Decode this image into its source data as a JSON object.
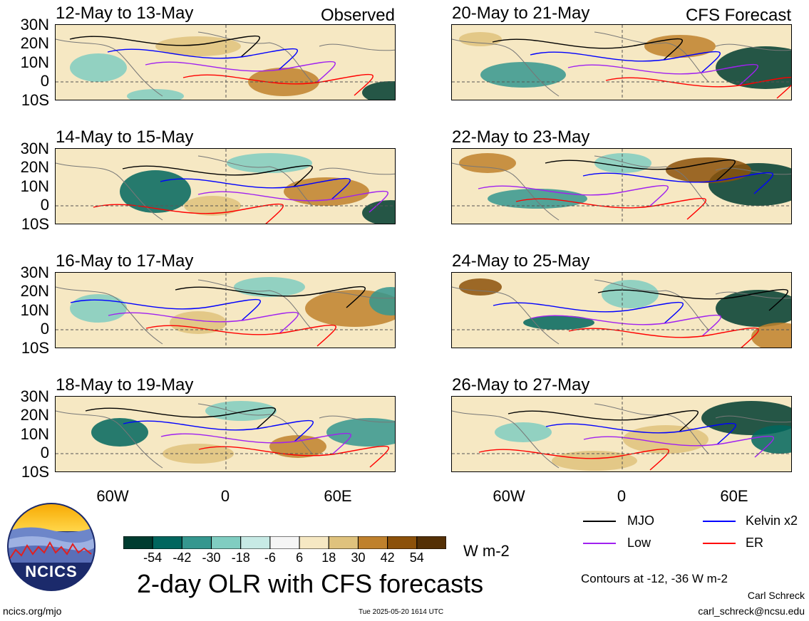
{
  "panels": [
    {
      "title": "12-May to 13-May",
      "tag": "Observed"
    },
    {
      "title": "20-May to 21-May",
      "tag": "CFS Forecast"
    },
    {
      "title": "14-May to 15-May",
      "tag": ""
    },
    {
      "title": "22-May to 23-May",
      "tag": ""
    },
    {
      "title": "16-May to 17-May",
      "tag": ""
    },
    {
      "title": "24-May to 25-May",
      "tag": ""
    },
    {
      "title": "18-May to 19-May",
      "tag": ""
    },
    {
      "title": "26-May to 27-May",
      "tag": ""
    }
  ],
  "lat_labels": [
    "30N",
    "20N",
    "10N",
    "0",
    "10S"
  ],
  "lon_labels": [
    "60W",
    "0",
    "60E"
  ],
  "colorbar": {
    "labels": [
      "-54",
      "-42",
      "-30",
      "-18",
      "-6",
      "6",
      "18",
      "30",
      "42",
      "54"
    ],
    "colors": [
      "#003c30",
      "#01665e",
      "#35978f",
      "#80cdc1",
      "#c7eae5",
      "#f5f5f5",
      "#f6e8c3",
      "#dfc27d",
      "#bf812d",
      "#8c510a",
      "#543005"
    ],
    "unit": "W m-2"
  },
  "legend": [
    {
      "label": "MJO",
      "color": "#000000"
    },
    {
      "label": "Kelvin x2",
      "color": "#0000ff"
    },
    {
      "label": "Low",
      "color": "#a020f0"
    },
    {
      "label": "ER",
      "color": "#ff0000"
    }
  ],
  "main_title": "2-day OLR with CFS forecasts",
  "contour_note": "Contours at -12, -36 W m-2",
  "author": "Carl Schreck",
  "email": "carl_schreck@ncsu.edu",
  "website": "ncics.org/mjo",
  "timestamp": "Tue 2025-05-20 1614 UTC",
  "logo_text": "NCICS",
  "colors": {
    "land": "#777777",
    "zero_line": "#555555"
  }
}
